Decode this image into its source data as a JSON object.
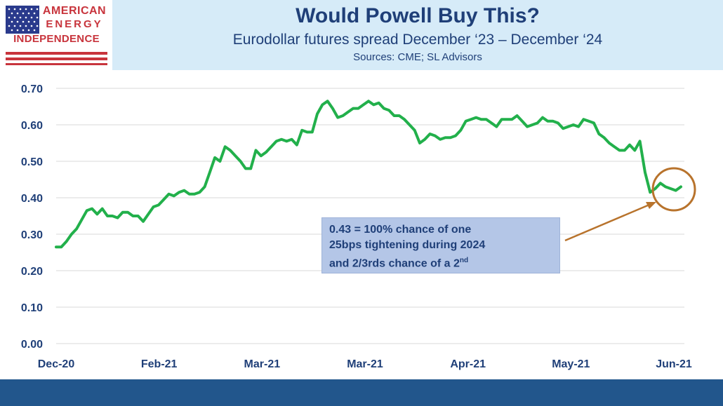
{
  "logo": {
    "line1": "AMERICAN",
    "line2": "ENERGY",
    "line3": "INDEPENDENCE"
  },
  "header": {
    "title": "Would Powell Buy This?",
    "subtitle": "Eurodollar futures spread December ‘23 – December ‘24",
    "sources": "Sources: CME; SL Advisors"
  },
  "annotation": {
    "line1": "0.43 = 100% chance of one",
    "line2": "25bps tightening during 2024",
    "line3_main": "and 2/3rds chance of a 2",
    "line3_sup": "nd"
  },
  "colors": {
    "line": "#22b04b",
    "highlight": "#b8732c",
    "header_bg": "#d6ebf8",
    "title": "#1f3f78",
    "footer": "#22568c"
  },
  "chart_data": {
    "type": "line",
    "title": "Would Powell Buy This?",
    "subtitle": "Eurodollar futures spread December ‘23 – December ‘24",
    "xlabel": "",
    "ylabel": "",
    "ylim": [
      0,
      0.7
    ],
    "yticks": [
      "0.00",
      "0.10",
      "0.20",
      "0.30",
      "0.40",
      "0.50",
      "0.60",
      "0.70"
    ],
    "xticks": [
      "Dec-20",
      "Feb-21",
      "Mar-21",
      "Mar-21",
      "Apr-21",
      "May-21",
      "Jun-21"
    ],
    "grid": true,
    "series": [
      {
        "values": [
          0.265,
          0.265,
          0.28,
          0.3,
          0.315,
          0.34,
          0.365,
          0.37,
          0.355,
          0.37,
          0.35,
          0.35,
          0.345,
          0.36,
          0.36,
          0.35,
          0.35,
          0.335,
          0.355,
          0.375,
          0.38,
          0.395,
          0.41,
          0.405,
          0.415,
          0.42,
          0.41,
          0.41,
          0.415,
          0.43,
          0.47,
          0.51,
          0.5,
          0.54,
          0.53,
          0.515,
          0.5,
          0.48,
          0.48,
          0.53,
          0.515,
          0.525,
          0.54,
          0.555,
          0.56,
          0.555,
          0.56,
          0.545,
          0.585,
          0.58,
          0.58,
          0.63,
          0.655,
          0.665,
          0.645,
          0.62,
          0.625,
          0.635,
          0.645,
          0.645,
          0.655,
          0.665,
          0.655,
          0.66,
          0.645,
          0.64,
          0.625,
          0.625,
          0.615,
          0.6,
          0.585,
          0.55,
          0.56,
          0.575,
          0.57,
          0.56,
          0.565,
          0.565,
          0.57,
          0.585,
          0.61,
          0.615,
          0.62,
          0.615,
          0.615,
          0.605,
          0.595,
          0.615,
          0.615,
          0.615,
          0.625,
          0.61,
          0.595,
          0.6,
          0.605,
          0.62,
          0.61,
          0.61,
          0.605,
          0.59,
          0.595,
          0.6,
          0.595,
          0.615,
          0.61,
          0.605,
          0.575,
          0.565,
          0.55,
          0.54,
          0.53,
          0.53,
          0.545,
          0.53,
          0.555,
          0.47,
          0.415,
          0.425,
          0.44,
          0.43,
          0.425,
          0.42,
          0.43
        ]
      }
    ]
  }
}
